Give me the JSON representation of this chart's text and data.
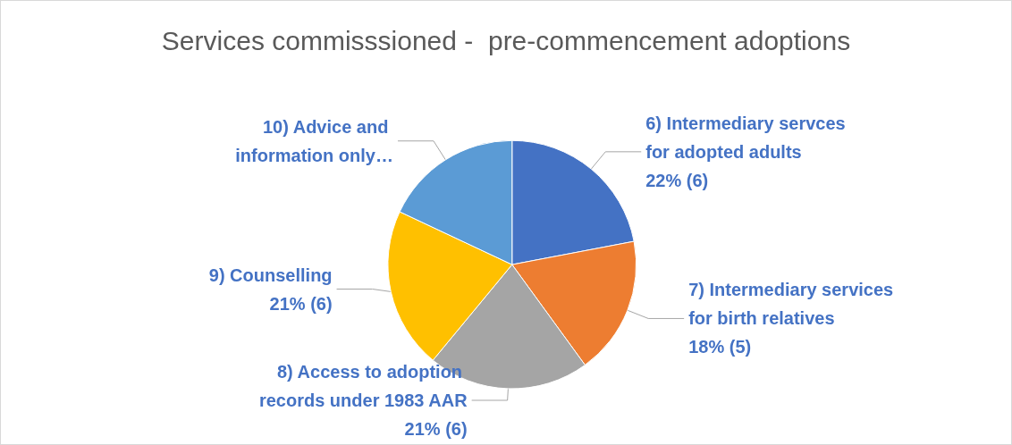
{
  "chart_data": {
    "type": "pie",
    "title": "Services commisssioned -  pre-commencement adoptions",
    "categories": [
      "6) Intermediary servces for adopted adults",
      "7) Intermediary services for birth relatives",
      "8) Access to adoption records under 1983 AAR",
      "9) Counselling",
      "10) Advice and information only…"
    ],
    "values": [
      22,
      18,
      21,
      21,
      18
    ],
    "value_labels": [
      "22% (6)",
      "18% (5)",
      "21% (6)",
      "21% (6)",
      null
    ],
    "colors": [
      "#4472c4",
      "#ed7d31",
      "#a5a5a5",
      "#ffc000",
      "#5b9bd5"
    ],
    "legend": false
  }
}
